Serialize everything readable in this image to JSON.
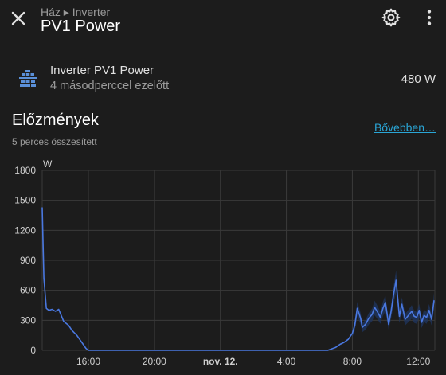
{
  "header": {
    "breadcrumb": "Ház ▸ Inverter",
    "title": "PV1 Power"
  },
  "entity": {
    "name": "Inverter PV1 Power",
    "last_changed": "4 másodperccel ezelőtt",
    "state": "480 W",
    "icon": "solar-panel-icon"
  },
  "history": {
    "title": "Előzmények",
    "more_link": "Bővebben…",
    "subtitle": "5 perces összesített"
  },
  "colors": {
    "background": "#1c1c1c",
    "line": "#4a78e0",
    "band": "#1f3560",
    "link": "#2aa6d6"
  },
  "chart_data": {
    "type": "line",
    "unit": "W",
    "ylim": [
      0,
      1800
    ],
    "y_ticks": [
      "0",
      "300",
      "600",
      "900",
      "1200",
      "1500",
      "1800"
    ],
    "x_ticks": [
      "16:00",
      "20:00",
      "nov. 12.",
      "4:00",
      "8:00",
      "12:00"
    ],
    "x_tick_hours": [
      16,
      20,
      24,
      28,
      32,
      36
    ],
    "xlim_hours": [
      13.2,
      37.0
    ],
    "grid": true,
    "series": [
      {
        "x_hours": [
          13.2,
          13.3,
          13.45,
          13.6,
          13.8,
          14.0,
          14.2,
          14.5,
          14.8,
          15.0,
          15.3,
          15.6,
          15.85,
          16.0,
          20.0,
          24.0,
          28.0,
          30.5,
          31.0,
          31.25,
          31.5,
          31.75,
          32.0,
          32.15,
          32.3,
          32.5,
          32.6,
          32.8,
          33.0,
          33.2,
          33.35,
          33.5,
          33.7,
          33.85,
          34.0,
          34.2,
          34.35,
          34.5,
          34.65,
          34.85,
          35.0,
          35.2,
          35.4,
          35.6,
          35.75,
          35.9,
          36.05,
          36.2,
          36.35,
          36.5,
          36.65,
          36.8,
          36.95
        ],
        "values": [
          1430,
          720,
          420,
          400,
          410,
          390,
          410,
          290,
          250,
          200,
          150,
          80,
          20,
          0,
          0,
          0,
          0,
          0,
          30,
          60,
          80,
          110,
          170,
          250,
          420,
          320,
          230,
          260,
          320,
          360,
          430,
          390,
          330,
          420,
          480,
          260,
          390,
          560,
          700,
          340,
          460,
          310,
          350,
          390,
          340,
          330,
          400,
          280,
          350,
          330,
          400,
          310,
          500
        ]
      }
    ]
  }
}
